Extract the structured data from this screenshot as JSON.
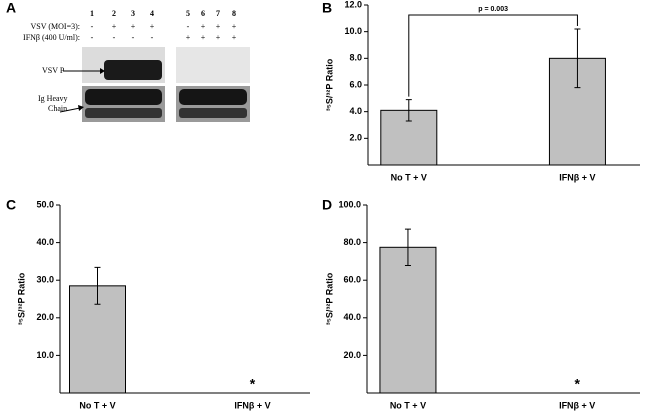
{
  "panel_labels": [
    "A",
    "B",
    "C",
    "D"
  ],
  "gel": {
    "lanes": [
      "1",
      "2",
      "3",
      "4",
      "5",
      "6",
      "7",
      "8"
    ],
    "rows": [
      {
        "label": "VSV (MOI=3):",
        "signs": [
          "-",
          "+",
          "+",
          "+",
          "-",
          "+",
          "+",
          "+"
        ]
      },
      {
        "label": "IFNβ (400 U/ml):",
        "signs": [
          "-",
          "-",
          "-",
          "-",
          "+",
          "+",
          "+",
          "+"
        ]
      }
    ],
    "bands": [
      "VSV P",
      "Ig Heavy Chain"
    ]
  },
  "chart_data": [
    {
      "type": "bar",
      "y_label": "³⁵S/³²P Ratio",
      "categories": [
        "No T + V",
        "IFNβ + V"
      ],
      "values": [
        4.1,
        8.0
      ],
      "errors": [
        0.8,
        2.2
      ],
      "color": "#c0c0c0",
      "ylim": [
        0,
        12
      ],
      "yticks": [
        {
          "value": 2,
          "label": "2.0"
        },
        {
          "value": 4,
          "label": "4.0"
        },
        {
          "value": 6,
          "label": "6.0"
        },
        {
          "value": 8,
          "label": "8.0"
        },
        {
          "value": 10,
          "label": "10.0"
        },
        {
          "value": 12,
          "label": "12.0"
        }
      ],
      "annotation": "p = 0.003"
    },
    {
      "type": "bar",
      "y_label": "³⁵S/³²P Ratio",
      "categories": [
        "No T + V",
        "IFNβ + V"
      ],
      "values": [
        28.5,
        0
      ],
      "errors": [
        4.9,
        null
      ],
      "color": "#c0c0c0",
      "ylim": [
        0,
        50
      ],
      "yticks": [
        {
          "value": 10,
          "label": "10.0"
        },
        {
          "value": 20,
          "label": "20.0"
        },
        {
          "value": 30,
          "label": "30.0"
        },
        {
          "value": 40,
          "label": "40.0"
        },
        {
          "value": 50,
          "label": "50.0"
        }
      ],
      "annotation": "*"
    },
    {
      "type": "bar",
      "y_label": "³⁵S/³²P Ratio",
      "categories": [
        "No T + V",
        "IFNβ + V"
      ],
      "values": [
        77.5,
        0
      ],
      "errors": [
        9.7,
        null
      ],
      "color": "#c0c0c0",
      "ylim": [
        0,
        100
      ],
      "yticks": [
        {
          "value": 20,
          "label": "20.0"
        },
        {
          "value": 40,
          "label": "40.0"
        },
        {
          "value": 60,
          "label": "60.0"
        },
        {
          "value": 80,
          "label": "80.0"
        },
        {
          "value": 100,
          "label": "100.0"
        }
      ],
      "annotation": "*"
    }
  ]
}
